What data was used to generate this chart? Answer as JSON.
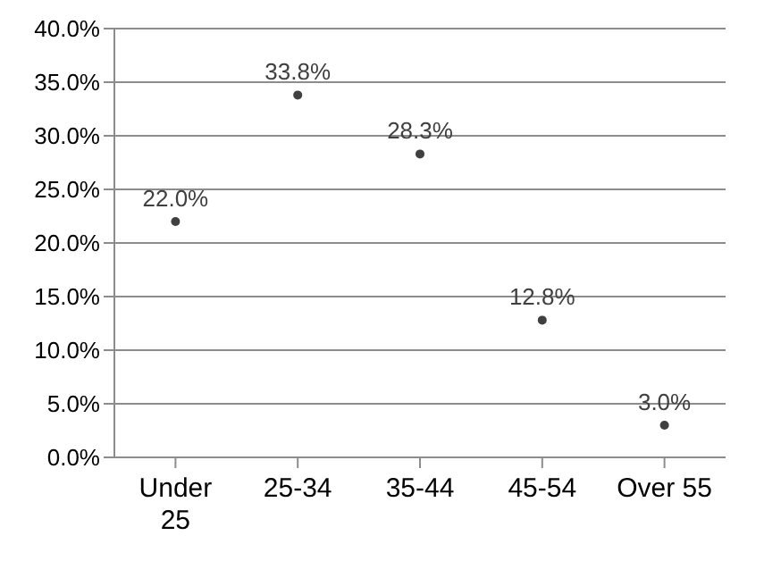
{
  "chart_data": {
    "type": "scatter",
    "categories": [
      "Under 25",
      "25-34",
      "35-44",
      "45-54",
      "Over 55"
    ],
    "values": [
      22.0,
      33.8,
      28.3,
      12.8,
      3.0
    ],
    "value_labels": [
      "22.0%",
      "33.8%",
      "28.3%",
      "12.8%",
      "3.0%"
    ],
    "color": "#404040",
    "marker": "circle",
    "grid": "y",
    "ylim": [
      0,
      40
    ],
    "yticks": [
      {
        "value": 0,
        "label": "0.0%"
      },
      {
        "value": 5,
        "label": "5.0%"
      },
      {
        "value": 10,
        "label": "10.0%"
      },
      {
        "value": 15,
        "label": "15.0%"
      },
      {
        "value": 20,
        "label": "20.0%"
      },
      {
        "value": 25,
        "label": "25.0%"
      },
      {
        "value": 30,
        "label": "30.0%"
      },
      {
        "value": 35,
        "label": "35.0%"
      },
      {
        "value": 40,
        "label": "40.0%"
      }
    ]
  }
}
